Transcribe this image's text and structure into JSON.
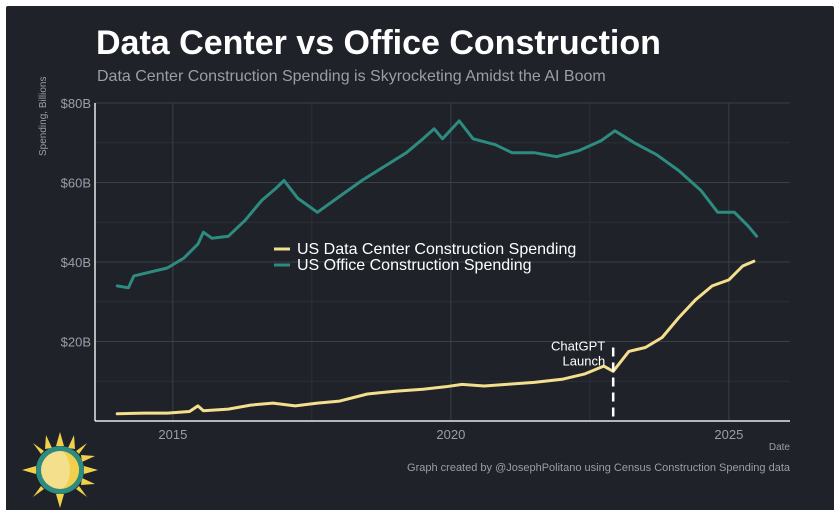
{
  "header": {
    "title": "Data Center vs Office Construction",
    "subtitle": "Data Center Construction Spending is Skyrocketing Amidst the AI Boom"
  },
  "footer": {
    "credit": "Graph created by @JosephPolitano using Census Construction Spending data"
  },
  "colors": {
    "background": "#1f2229",
    "data_center": "#f3df8c",
    "office": "#2e8b7f",
    "grid": "#3a3f48",
    "axis_text": "#9a9ea6"
  },
  "chart_data": {
    "type": "line",
    "ylabel": "Spending, Billions",
    "xlabel": "Date",
    "xlim": [
      2013.6,
      2026.1
    ],
    "ylim": [
      0,
      80
    ],
    "x_ticks": [
      2015,
      2020,
      2025
    ],
    "x_tick_labels": [
      "2015",
      "2020",
      "2025"
    ],
    "y_ticks": [
      20,
      40,
      60,
      80
    ],
    "y_tick_labels": [
      "$20B",
      "$40B",
      "$60B",
      "$80B"
    ],
    "grid": true,
    "legend_position": "center",
    "series": [
      {
        "name": "US Data Center Construction Spending",
        "color": "#f3df8c",
        "points": [
          [
            2014.0,
            1.8
          ],
          [
            2014.5,
            2.0
          ],
          [
            2014.9,
            2.0
          ],
          [
            2015.3,
            2.4
          ],
          [
            2015.45,
            3.8
          ],
          [
            2015.55,
            2.6
          ],
          [
            2016.0,
            3.0
          ],
          [
            2016.4,
            4.0
          ],
          [
            2016.8,
            4.5
          ],
          [
            2017.2,
            3.8
          ],
          [
            2017.6,
            4.5
          ],
          [
            2018.0,
            5.0
          ],
          [
            2018.5,
            6.8
          ],
          [
            2019.0,
            7.5
          ],
          [
            2019.5,
            8.0
          ],
          [
            2019.9,
            8.6
          ],
          [
            2020.2,
            9.2
          ],
          [
            2020.6,
            8.8
          ],
          [
            2021.0,
            9.2
          ],
          [
            2021.5,
            9.7
          ],
          [
            2022.0,
            10.5
          ],
          [
            2022.4,
            11.8
          ],
          [
            2022.75,
            13.8
          ],
          [
            2022.92,
            12.5
          ],
          [
            2023.2,
            17.5
          ],
          [
            2023.5,
            18.5
          ],
          [
            2023.8,
            21.0
          ],
          [
            2024.1,
            26.0
          ],
          [
            2024.4,
            30.5
          ],
          [
            2024.7,
            34.0
          ],
          [
            2025.0,
            35.5
          ],
          [
            2025.25,
            39.0
          ],
          [
            2025.45,
            40.2
          ]
        ]
      },
      {
        "name": "US Office Construction Spending",
        "color": "#2e8b7f",
        "points": [
          [
            2014.0,
            34.0
          ],
          [
            2014.2,
            33.5
          ],
          [
            2014.3,
            36.5
          ],
          [
            2014.6,
            37.5
          ],
          [
            2014.9,
            38.5
          ],
          [
            2015.2,
            41.0
          ],
          [
            2015.45,
            44.5
          ],
          [
            2015.55,
            47.5
          ],
          [
            2015.7,
            46.0
          ],
          [
            2016.0,
            46.5
          ],
          [
            2016.3,
            50.5
          ],
          [
            2016.6,
            55.5
          ],
          [
            2016.85,
            58.5
          ],
          [
            2017.0,
            60.5
          ],
          [
            2017.25,
            56.0
          ],
          [
            2017.6,
            52.5
          ],
          [
            2018.0,
            56.5
          ],
          [
            2018.4,
            60.5
          ],
          [
            2018.8,
            64.0
          ],
          [
            2019.2,
            67.5
          ],
          [
            2019.5,
            71.0
          ],
          [
            2019.7,
            73.5
          ],
          [
            2019.85,
            71.0
          ],
          [
            2020.15,
            75.5
          ],
          [
            2020.4,
            71.0
          ],
          [
            2020.8,
            69.5
          ],
          [
            2021.1,
            67.5
          ],
          [
            2021.5,
            67.5
          ],
          [
            2021.9,
            66.5
          ],
          [
            2022.3,
            68.0
          ],
          [
            2022.7,
            70.5
          ],
          [
            2022.95,
            73.0
          ],
          [
            2023.3,
            70.0
          ],
          [
            2023.7,
            67.0
          ],
          [
            2024.1,
            63.0
          ],
          [
            2024.5,
            58.0
          ],
          [
            2024.8,
            52.5
          ],
          [
            2025.1,
            52.5
          ],
          [
            2025.35,
            49.0
          ],
          [
            2025.5,
            46.5
          ]
        ]
      }
    ],
    "annotations": [
      {
        "text_line1": "ChatGPT",
        "text_line2": "Launch",
        "x": 2022.92
      }
    ]
  }
}
